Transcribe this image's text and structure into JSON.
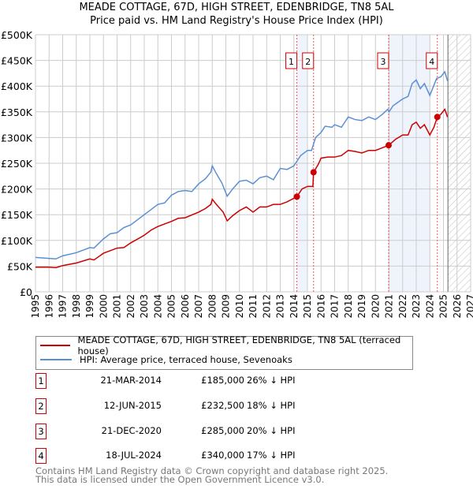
{
  "title": "MEADE COTTAGE, 67D, HIGH STREET, EDENBRIDGE, TN8 5AL",
  "subtitle": "Price paid vs. HM Land Registry's House Price Index (HPI)",
  "chart_data": {
    "type": "line",
    "ylim": [
      0,
      500000
    ],
    "xlim": [
      1995,
      2027
    ],
    "yticks": [
      {
        "v": 0,
        "label": "£0"
      },
      {
        "v": 50000,
        "label": "£50K"
      },
      {
        "v": 100000,
        "label": "£100K"
      },
      {
        "v": 150000,
        "label": "£150K"
      },
      {
        "v": 200000,
        "label": "£200K"
      },
      {
        "v": 250000,
        "label": "£250K"
      },
      {
        "v": 300000,
        "label": "£300K"
      },
      {
        "v": 350000,
        "label": "£350K"
      },
      {
        "v": 400000,
        "label": "£400K"
      },
      {
        "v": 450000,
        "label": "£450K"
      },
      {
        "v": 500000,
        "label": "£500K"
      }
    ],
    "xticks": [
      "1995",
      "1996",
      "1997",
      "1998",
      "1999",
      "2000",
      "2001",
      "2002",
      "2003",
      "2004",
      "2005",
      "2006",
      "2007",
      "2008",
      "2009",
      "2010",
      "2011",
      "2012",
      "2013",
      "2014",
      "2015",
      "2016",
      "2017",
      "2018",
      "2019",
      "2020",
      "2021",
      "2022",
      "2023",
      "2024",
      "2025",
      "2026",
      "2027"
    ],
    "grid": true,
    "shaded_periods": [
      [
        2014.22,
        2015.0
      ],
      [
        2020.97,
        2024.0
      ]
    ],
    "forecast_hatch_from": 2025.33,
    "series": [
      {
        "name": "MEADE COTTAGE, 67D, HIGH STREET, EDENBRIDGE, TN8 5AL (terraced house)",
        "color": "#cc0000",
        "points": [
          [
            1995,
            48000
          ],
          [
            1996,
            48000
          ],
          [
            1996.5,
            47000
          ],
          [
            1997,
            51000
          ],
          [
            1998,
            56000
          ],
          [
            1999,
            64000
          ],
          [
            1999.3,
            62000
          ],
          [
            2000,
            75000
          ],
          [
            2001,
            85000
          ],
          [
            2001.5,
            86000
          ],
          [
            2002,
            95000
          ],
          [
            2003,
            110000
          ],
          [
            2003.5,
            120000
          ],
          [
            2004,
            127000
          ],
          [
            2005,
            137000
          ],
          [
            2005.5,
            143000
          ],
          [
            2006,
            144000
          ],
          [
            2007,
            155000
          ],
          [
            2007.5,
            162000
          ],
          [
            2007.9,
            170000
          ],
          [
            2008,
            180000
          ],
          [
            2008.3,
            170000
          ],
          [
            2008.8,
            155000
          ],
          [
            2009.1,
            138000
          ],
          [
            2009.5,
            148000
          ],
          [
            2010,
            158000
          ],
          [
            2010.5,
            165000
          ],
          [
            2011,
            155000
          ],
          [
            2011.5,
            165000
          ],
          [
            2012,
            165000
          ],
          [
            2012.5,
            170000
          ],
          [
            2013,
            170000
          ],
          [
            2013.5,
            175000
          ],
          [
            2014.22,
            185000
          ],
          [
            2014.6,
            200000
          ],
          [
            2015,
            205000
          ],
          [
            2015.4,
            205000
          ],
          [
            2015.45,
            232500
          ],
          [
            2015.8,
            248000
          ],
          [
            2016,
            260000
          ],
          [
            2016.5,
            262000
          ],
          [
            2017,
            262000
          ],
          [
            2017.5,
            265000
          ],
          [
            2018,
            275000
          ],
          [
            2018.5,
            273000
          ],
          [
            2019,
            270000
          ],
          [
            2019.5,
            275000
          ],
          [
            2020,
            275000
          ],
          [
            2020.5,
            280000
          ],
          [
            2020.97,
            285000
          ],
          [
            2021.5,
            297000
          ],
          [
            2022,
            305000
          ],
          [
            2022.4,
            305000
          ],
          [
            2022.7,
            325000
          ],
          [
            2023,
            330000
          ],
          [
            2023.3,
            318000
          ],
          [
            2023.6,
            325000
          ],
          [
            2024,
            305000
          ],
          [
            2024.3,
            320000
          ],
          [
            2024.55,
            340000
          ],
          [
            2024.8,
            345000
          ],
          [
            2025.1,
            355000
          ],
          [
            2025.3,
            340000
          ]
        ]
      },
      {
        "name": "HPI: Average price, terraced house, Sevenoaks",
        "color": "#5b8fd4",
        "points": [
          [
            1995,
            67000
          ],
          [
            1996,
            65000
          ],
          [
            1996.5,
            64000
          ],
          [
            1997,
            70000
          ],
          [
            1998,
            76000
          ],
          [
            1999,
            86000
          ],
          [
            1999.3,
            85000
          ],
          [
            2000,
            103000
          ],
          [
            2000.5,
            113000
          ],
          [
            2001,
            115000
          ],
          [
            2001.5,
            125000
          ],
          [
            2002,
            130000
          ],
          [
            2003,
            150000
          ],
          [
            2003.5,
            160000
          ],
          [
            2004,
            170000
          ],
          [
            2004.5,
            173000
          ],
          [
            2005,
            188000
          ],
          [
            2005.5,
            195000
          ],
          [
            2006,
            197000
          ],
          [
            2006.5,
            195000
          ],
          [
            2007,
            210000
          ],
          [
            2007.5,
            220000
          ],
          [
            2007.9,
            233000
          ],
          [
            2008,
            245000
          ],
          [
            2008.3,
            230000
          ],
          [
            2008.7,
            212000
          ],
          [
            2009.1,
            186000
          ],
          [
            2009.5,
            200000
          ],
          [
            2010,
            215000
          ],
          [
            2010.5,
            217000
          ],
          [
            2011,
            210000
          ],
          [
            2011.5,
            222000
          ],
          [
            2012,
            225000
          ],
          [
            2012.5,
            218000
          ],
          [
            2013,
            240000
          ],
          [
            2013.5,
            238000
          ],
          [
            2014,
            245000
          ],
          [
            2014.5,
            265000
          ],
          [
            2015,
            275000
          ],
          [
            2015.3,
            275000
          ],
          [
            2015.6,
            300000
          ],
          [
            2016,
            310000
          ],
          [
            2016.3,
            322000
          ],
          [
            2016.8,
            320000
          ],
          [
            2017,
            325000
          ],
          [
            2017.5,
            320000
          ],
          [
            2018,
            340000
          ],
          [
            2018.5,
            335000
          ],
          [
            2019,
            333000
          ],
          [
            2019.5,
            340000
          ],
          [
            2020,
            335000
          ],
          [
            2020.5,
            345000
          ],
          [
            2020.9,
            355000
          ],
          [
            2021,
            350000
          ],
          [
            2021.3,
            362000
          ],
          [
            2022,
            375000
          ],
          [
            2022.4,
            380000
          ],
          [
            2022.7,
            405000
          ],
          [
            2023,
            412000
          ],
          [
            2023.3,
            395000
          ],
          [
            2023.6,
            405000
          ],
          [
            2024,
            382000
          ],
          [
            2024.2,
            395000
          ],
          [
            2024.5,
            415000
          ],
          [
            2024.8,
            418000
          ],
          [
            2025.1,
            428000
          ],
          [
            2025.3,
            410000
          ]
        ]
      }
    ],
    "sales": [
      {
        "label": "1",
        "x": 2014.22,
        "price": 185000
      },
      {
        "label": "2",
        "x": 2015.45,
        "price": 232500
      },
      {
        "label": "3",
        "x": 2020.97,
        "price": 285000
      },
      {
        "label": "4",
        "x": 2024.55,
        "price": 340000
      }
    ]
  },
  "legend": [
    {
      "label": "MEADE COTTAGE, 67D, HIGH STREET, EDENBRIDGE, TN8 5AL (terraced house)",
      "color": "#cc0000"
    },
    {
      "label": "HPI: Average price, terraced house, Sevenoaks",
      "color": "#5b8fd4"
    }
  ],
  "transactions": [
    {
      "num": "1",
      "date": "21-MAR-2014",
      "price": "£185,000",
      "hpi": "26% ↓ HPI"
    },
    {
      "num": "2",
      "date": "12-JUN-2015",
      "price": "£232,500",
      "hpi": "18% ↓ HPI"
    },
    {
      "num": "3",
      "date": "21-DEC-2020",
      "price": "£285,000",
      "hpi": "20% ↓ HPI"
    },
    {
      "num": "4",
      "date": "18-JUL-2024",
      "price": "£340,000",
      "hpi": "17% ↓ HPI"
    }
  ],
  "footer": {
    "line1": "Contains HM Land Registry data © Crown copyright and database right 2025.",
    "line2": "This data is licensed under the Open Government Licence v3.0."
  }
}
